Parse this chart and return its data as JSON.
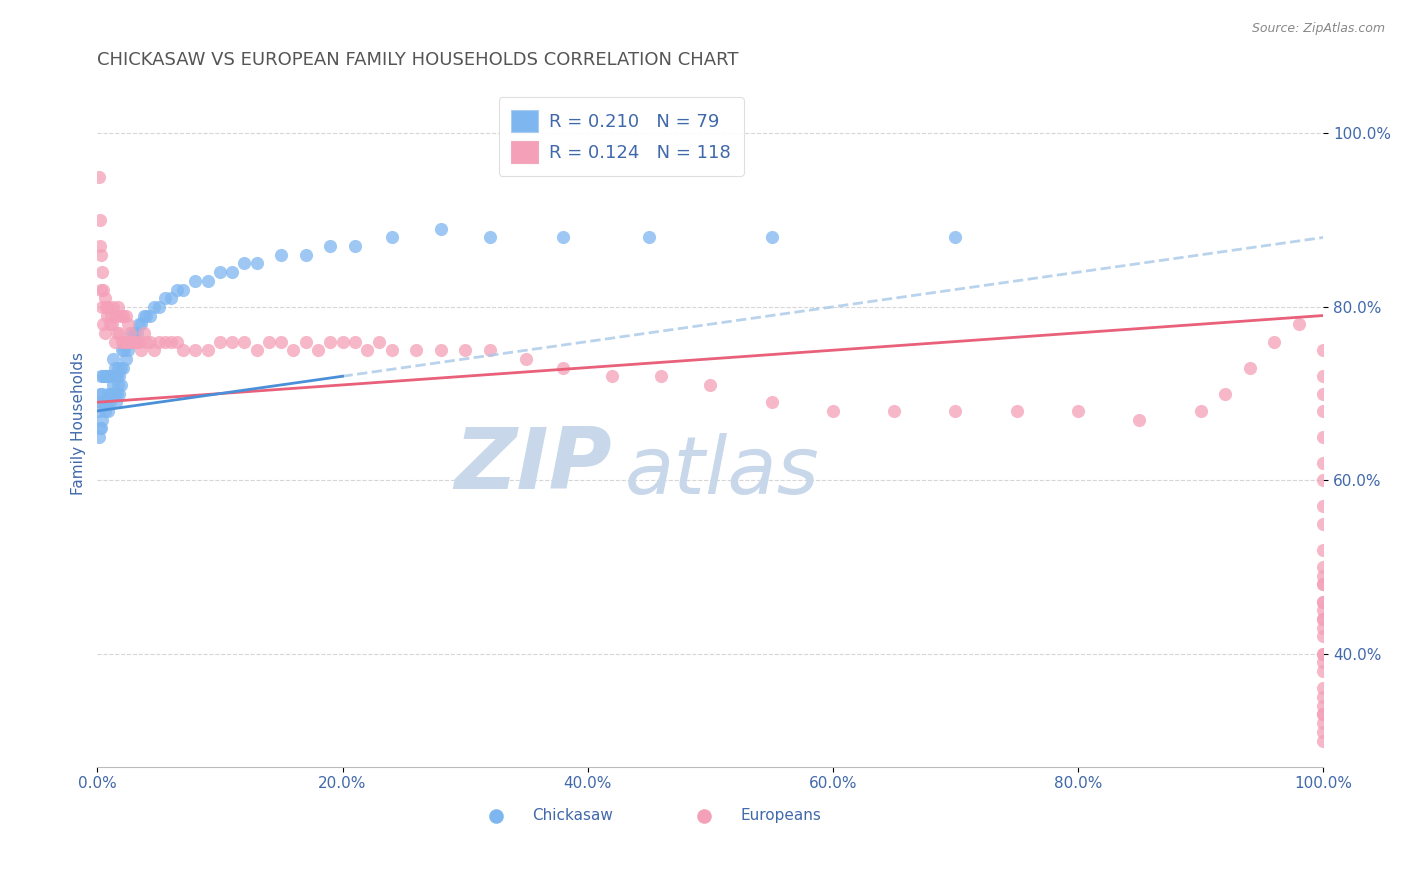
{
  "title": "CHICKASAW VS EUROPEAN FAMILY HOUSEHOLDS CORRELATION CHART",
  "source": "Source: ZipAtlas.com",
  "ylabel": "Family Households",
  "x_tick_labels": [
    "0.0%",
    "20.0%",
    "40.0%",
    "60.0%",
    "80.0%",
    "100.0%"
  ],
  "y_tick_labels": [
    "40.0%",
    "60.0%",
    "80.0%",
    "100.0%"
  ],
  "xlim": [
    0.0,
    1.0
  ],
  "ylim": [
    0.27,
    1.06
  ],
  "y_ticks": [
    0.4,
    0.6,
    0.8,
    1.0
  ],
  "x_ticks": [
    0.0,
    0.2,
    0.4,
    0.6,
    0.8,
    1.0
  ],
  "chickasaw_R": 0.21,
  "chickasaw_N": 79,
  "european_R": 0.124,
  "european_N": 118,
  "chickasaw_color": "#7EB6F0",
  "european_color": "#F4A0B8",
  "trend_chickasaw_solid_color": "#4A90D9",
  "trend_chickasaw_dashed_color": "#A8C8E8",
  "trend_european_color": "#E8607A",
  "watermark_zip": "ZIP",
  "watermark_atlas": "atlas",
  "watermark_color": "#C8D8EA",
  "title_color": "#555555",
  "axis_label_color": "#4169AA",
  "tick_color": "#4169AA",
  "source_color": "#888888",
  "grid_color": "#CCCCCC",
  "legend_text_color": "#333333",
  "legend_r_color": "#4169AA",
  "chickasaw_x": [
    0.001,
    0.001,
    0.002,
    0.002,
    0.003,
    0.003,
    0.003,
    0.004,
    0.004,
    0.005,
    0.005,
    0.006,
    0.006,
    0.007,
    0.007,
    0.008,
    0.008,
    0.009,
    0.009,
    0.01,
    0.01,
    0.011,
    0.011,
    0.012,
    0.012,
    0.013,
    0.013,
    0.014,
    0.014,
    0.015,
    0.015,
    0.016,
    0.016,
    0.017,
    0.017,
    0.018,
    0.018,
    0.019,
    0.019,
    0.02,
    0.021,
    0.022,
    0.023,
    0.024,
    0.025,
    0.026,
    0.027,
    0.028,
    0.029,
    0.03,
    0.032,
    0.034,
    0.036,
    0.038,
    0.04,
    0.043,
    0.046,
    0.05,
    0.055,
    0.06,
    0.065,
    0.07,
    0.08,
    0.09,
    0.1,
    0.11,
    0.12,
    0.13,
    0.15,
    0.17,
    0.19,
    0.21,
    0.24,
    0.28,
    0.32,
    0.38,
    0.45,
    0.55,
    0.7
  ],
  "chickasaw_y": [
    0.68,
    0.65,
    0.7,
    0.66,
    0.72,
    0.69,
    0.66,
    0.7,
    0.67,
    0.72,
    0.69,
    0.72,
    0.68,
    0.72,
    0.69,
    0.72,
    0.69,
    0.7,
    0.68,
    0.72,
    0.69,
    0.72,
    0.7,
    0.72,
    0.7,
    0.74,
    0.71,
    0.73,
    0.7,
    0.72,
    0.69,
    0.72,
    0.7,
    0.73,
    0.71,
    0.72,
    0.7,
    0.73,
    0.71,
    0.75,
    0.73,
    0.75,
    0.74,
    0.76,
    0.75,
    0.76,
    0.76,
    0.77,
    0.76,
    0.77,
    0.77,
    0.78,
    0.78,
    0.79,
    0.79,
    0.79,
    0.8,
    0.8,
    0.81,
    0.81,
    0.82,
    0.82,
    0.83,
    0.83,
    0.84,
    0.84,
    0.85,
    0.85,
    0.86,
    0.86,
    0.87,
    0.87,
    0.88,
    0.89,
    0.88,
    0.88,
    0.88,
    0.88,
    0.88
  ],
  "european_x": [
    0.001,
    0.002,
    0.002,
    0.003,
    0.003,
    0.004,
    0.004,
    0.005,
    0.005,
    0.006,
    0.006,
    0.007,
    0.008,
    0.009,
    0.01,
    0.011,
    0.012,
    0.013,
    0.014,
    0.015,
    0.016,
    0.017,
    0.018,
    0.019,
    0.02,
    0.021,
    0.022,
    0.023,
    0.024,
    0.025,
    0.026,
    0.027,
    0.028,
    0.03,
    0.032,
    0.034,
    0.036,
    0.038,
    0.04,
    0.043,
    0.046,
    0.05,
    0.055,
    0.06,
    0.065,
    0.07,
    0.08,
    0.09,
    0.1,
    0.11,
    0.12,
    0.13,
    0.14,
    0.15,
    0.16,
    0.17,
    0.18,
    0.19,
    0.2,
    0.21,
    0.22,
    0.23,
    0.24,
    0.26,
    0.28,
    0.3,
    0.32,
    0.35,
    0.38,
    0.42,
    0.46,
    0.5,
    0.55,
    0.6,
    0.65,
    0.7,
    0.75,
    0.8,
    0.85,
    0.9,
    0.92,
    0.94,
    0.96,
    0.98,
    1.0,
    1.0,
    1.0,
    1.0,
    1.0,
    1.0,
    1.0,
    1.0,
    1.0,
    1.0,
    1.0,
    1.0,
    1.0,
    1.0,
    1.0,
    1.0,
    1.0,
    1.0,
    1.0,
    1.0,
    1.0,
    1.0,
    1.0,
    1.0,
    1.0,
    1.0,
    1.0,
    1.0,
    1.0,
    1.0,
    1.0,
    1.0,
    1.0
  ],
  "european_y": [
    0.95,
    0.9,
    0.87,
    0.86,
    0.82,
    0.84,
    0.8,
    0.82,
    0.78,
    0.81,
    0.77,
    0.8,
    0.79,
    0.8,
    0.78,
    0.79,
    0.78,
    0.8,
    0.76,
    0.79,
    0.77,
    0.8,
    0.77,
    0.79,
    0.76,
    0.79,
    0.76,
    0.79,
    0.76,
    0.78,
    0.76,
    0.77,
    0.76,
    0.76,
    0.76,
    0.76,
    0.75,
    0.77,
    0.76,
    0.76,
    0.75,
    0.76,
    0.76,
    0.76,
    0.76,
    0.75,
    0.75,
    0.75,
    0.76,
    0.76,
    0.76,
    0.75,
    0.76,
    0.76,
    0.75,
    0.76,
    0.75,
    0.76,
    0.76,
    0.76,
    0.75,
    0.76,
    0.75,
    0.75,
    0.75,
    0.75,
    0.75,
    0.74,
    0.73,
    0.72,
    0.72,
    0.71,
    0.69,
    0.68,
    0.68,
    0.68,
    0.68,
    0.68,
    0.67,
    0.68,
    0.7,
    0.73,
    0.76,
    0.78,
    0.75,
    0.72,
    0.7,
    0.68,
    0.65,
    0.62,
    0.6,
    0.57,
    0.55,
    0.52,
    0.5,
    0.48,
    0.46,
    0.44,
    0.42,
    0.4,
    0.38,
    0.36,
    0.34,
    0.32,
    0.3,
    0.45,
    0.49,
    0.33,
    0.31,
    0.43,
    0.46,
    0.39,
    0.48,
    0.35,
    0.44,
    0.4,
    0.33
  ],
  "trend_chickasaw_x_start": 0.0,
  "trend_chickasaw_x_end": 1.0,
  "trend_chickasaw_y_start": 0.68,
  "trend_chickasaw_y_end": 0.88,
  "trend_chickasaw_solid_x_end": 0.2,
  "trend_european_x_start": 0.0,
  "trend_european_x_end": 1.0,
  "trend_european_y_start": 0.69,
  "trend_european_y_end": 0.79
}
